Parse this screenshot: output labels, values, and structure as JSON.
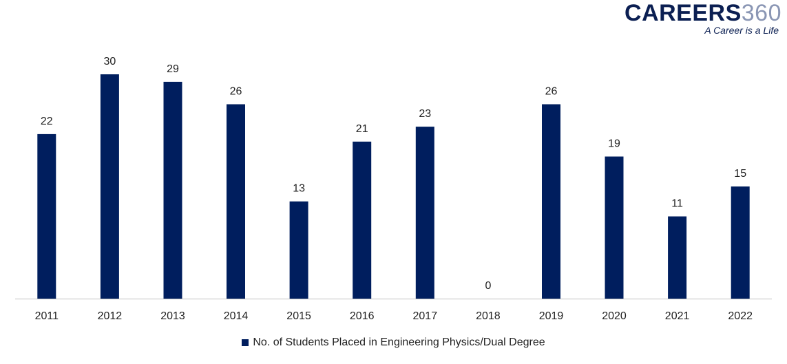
{
  "logo": {
    "main_text": "CAREERS",
    "number_text": "360",
    "tagline": "A Career is a Life"
  },
  "colors": {
    "bar": "#001e5e",
    "axis": "#bfbfbf",
    "text": "#222222"
  },
  "chart_data": {
    "type": "bar",
    "title": "",
    "xlabel": "",
    "ylabel": "",
    "categories": [
      "2011",
      "2012",
      "2013",
      "2014",
      "2015",
      "2016",
      "2017",
      "2018",
      "2019",
      "2020",
      "2021",
      "2022"
    ],
    "series": [
      {
        "name": "No. of Students Placed in Engineering Physics/Dual Degree",
        "values": [
          22,
          30,
          29,
          26,
          13,
          21,
          23,
          0,
          26,
          19,
          11,
          15
        ]
      }
    ],
    "ylim": [
      0,
      30
    ],
    "grid": false,
    "legend_position": "bottom",
    "data_labels": true
  }
}
